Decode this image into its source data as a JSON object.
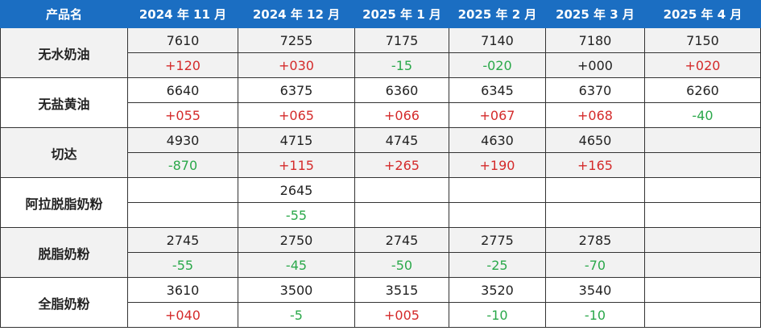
{
  "table": {
    "header": [
      "产品名",
      "2024 年 11 月",
      "2024 年 12 月",
      "2025 年 1 月",
      "2025 年 2 月",
      "2025 年 3 月",
      "2025 年 4 月"
    ],
    "rows": [
      {
        "product": "无水奶油",
        "prices": [
          7610,
          7255,
          7175,
          7140,
          7180,
          7150
        ],
        "changes": [
          "+120",
          "+030",
          "-15",
          "-020",
          "+000",
          "+020"
        ]
      },
      {
        "product": "无盐黄油",
        "prices": [
          6640,
          6375,
          6360,
          6345,
          6370,
          6260
        ],
        "changes": [
          "+055",
          "+065",
          "+066",
          "+067",
          "+068",
          "-40"
        ]
      },
      {
        "product": "切达",
        "prices": [
          4930,
          4715,
          4745,
          4630,
          4650,
          null
        ],
        "changes": [
          "-870",
          "+115",
          "+265",
          "+190",
          "+165",
          null
        ]
      },
      {
        "product": "阿拉脱脂奶粉",
        "prices": [
          null,
          2645,
          null,
          null,
          null,
          null
        ],
        "changes": [
          null,
          "-55",
          null,
          null,
          null,
          null
        ]
      },
      {
        "product": "脱脂奶粉",
        "prices": [
          2745,
          2750,
          2745,
          2775,
          2785,
          null
        ],
        "changes": [
          "-55",
          "-45",
          "-50",
          "-25",
          "-70",
          null
        ]
      },
      {
        "product": "全脂奶粉",
        "prices": [
          3610,
          3500,
          3515,
          3520,
          3540,
          null
        ],
        "changes": [
          "+040",
          "-5",
          "+005",
          "-10",
          "-10",
          null
        ]
      }
    ]
  }
}
